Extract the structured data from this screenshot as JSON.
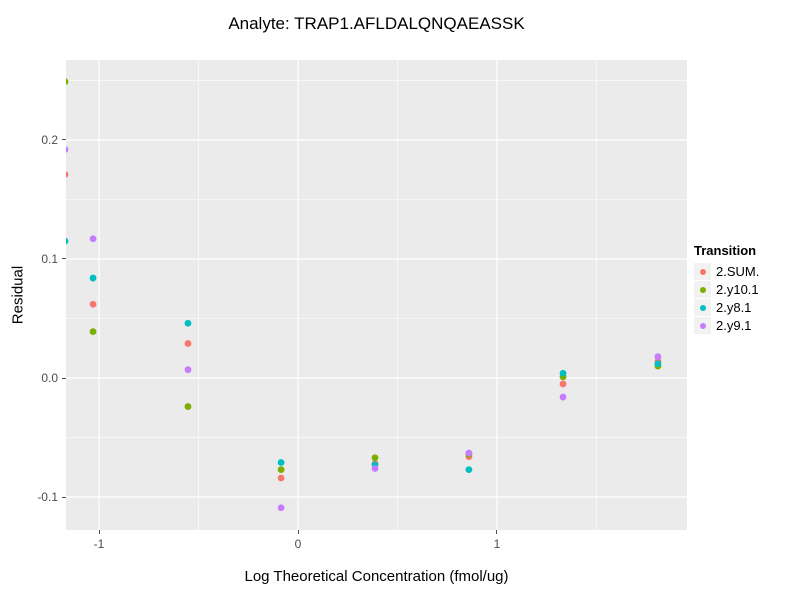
{
  "title": "Analyte: TRAP1.AFLDALQNQAEASSK",
  "chart_data": {
    "type": "scatter",
    "title": "Analyte: TRAP1.AFLDALQNQAEASSK",
    "xlabel": "Log Theoretical Concentration (fmol/ug)",
    "ylabel": "Residual",
    "panel_bg": "#ebebeb",
    "grid_color": "#ffffff",
    "grid": true,
    "legend_title": "Transition",
    "legend_position": "right",
    "x_range": [
      -1.166,
      1.955
    ],
    "y_range": [
      -0.1277,
      0.2672
    ],
    "x_ticks": {
      "values": [
        -1,
        0,
        1
      ],
      "labels": [
        "-1",
        "0",
        "1"
      ]
    },
    "y_ticks": {
      "values": [
        0.2,
        0.1,
        0.0,
        -0.1
      ],
      "labels": [
        "0.2",
        "0.1",
        "0.0",
        "-0.1"
      ]
    },
    "x_minor": [
      -0.5,
      0.5,
      1.5
    ],
    "y_minor": [
      0.25,
      0.15,
      0.05,
      -0.05
    ],
    "x": [
      -1.171,
      -1.03,
      -0.553,
      -0.085,
      0.387,
      0.859,
      1.332,
      1.809
    ],
    "series": [
      {
        "name": "2.SUM.",
        "color": "#F8766D",
        "y": [
          0.171,
          0.062,
          0.029,
          -0.084,
          -0.072,
          -0.066,
          -0.005,
          0.014
        ]
      },
      {
        "name": "2.y10.1",
        "color": "#7CAE00",
        "y": [
          0.249,
          0.039,
          -0.024,
          -0.077,
          -0.067,
          -0.064,
          0.001,
          0.01
        ]
      },
      {
        "name": "2.y8.1",
        "color": "#00BFC4",
        "y": [
          0.115,
          0.084,
          0.046,
          -0.071,
          -0.073,
          -0.077,
          0.004,
          0.012
        ]
      },
      {
        "name": "2.y9.1",
        "color": "#C77CFF",
        "y": [
          0.192,
          0.117,
          0.007,
          -0.109,
          -0.076,
          -0.063,
          -0.016,
          0.018
        ]
      }
    ]
  }
}
